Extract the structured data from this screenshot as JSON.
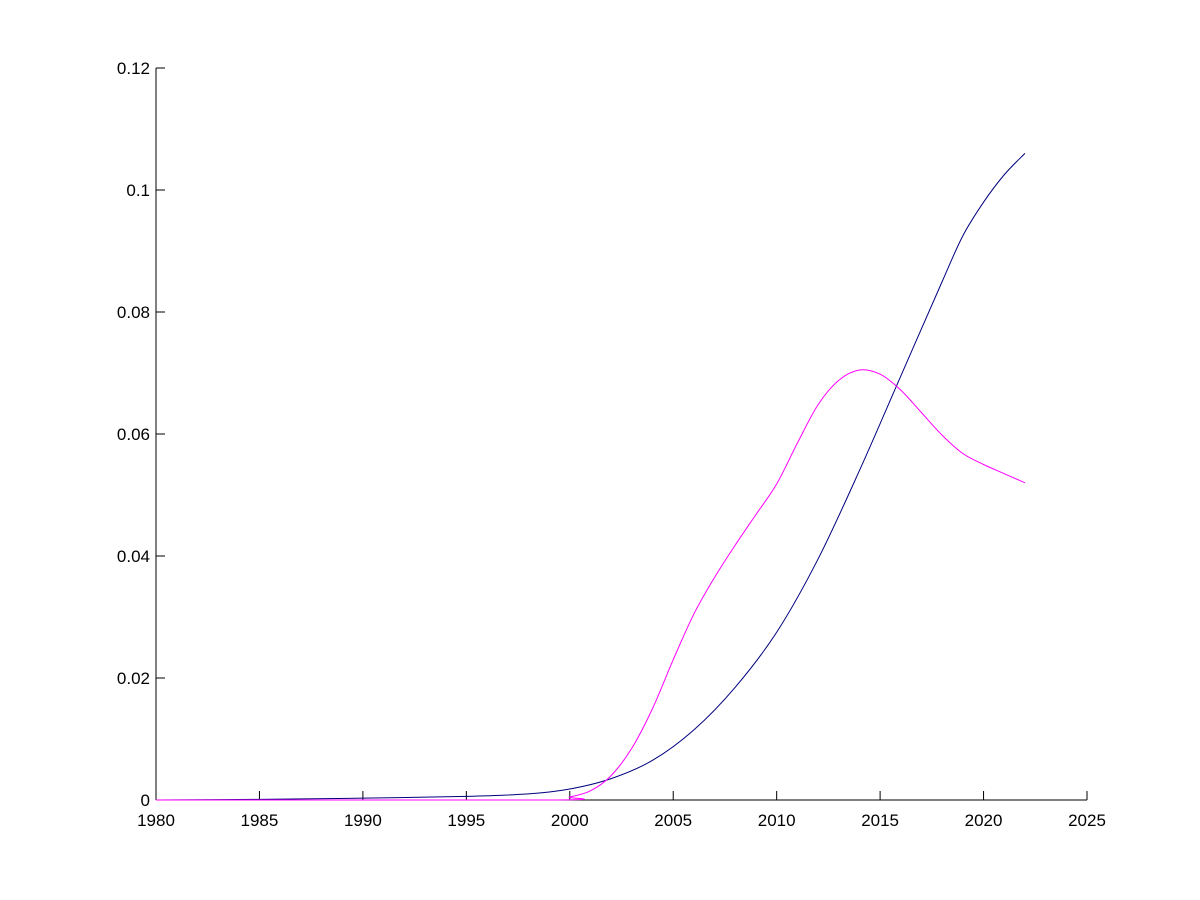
{
  "chart_data": {
    "type": "line",
    "title": "",
    "xlabel": "",
    "ylabel": "",
    "xlim": [
      1980,
      2025
    ],
    "ylim": [
      0,
      0.12
    ],
    "xticks": [
      1980,
      1985,
      1990,
      1995,
      2000,
      2005,
      2010,
      2015,
      2020,
      2025
    ],
    "xtick_labels": [
      "1980",
      "1985",
      "1990",
      "1995",
      "2000",
      "2005",
      "2010",
      "2015",
      "2020",
      "2025"
    ],
    "yticks": [
      0,
      0.02,
      0.04,
      0.06,
      0.08,
      0.1,
      0.12
    ],
    "ytick_labels": [
      "0",
      "0.02",
      "0.04",
      "0.06",
      "0.08",
      "0.1",
      "0.12"
    ],
    "grid": false,
    "legend": "none",
    "series": [
      {
        "color": "#00007f",
        "x": [
          1980,
          1985,
          1990,
          1995,
          1998,
          2000,
          2002,
          2004,
          2006,
          2008,
          2010,
          2012,
          2014,
          2016,
          2018,
          2019,
          2020,
          2021,
          2022
        ],
        "y": [
          0,
          0.0001,
          0.0003,
          0.0006,
          0.001,
          0.0018,
          0.0035,
          0.0065,
          0.0115,
          0.0185,
          0.0275,
          0.0395,
          0.054,
          0.0695,
          0.085,
          0.0925,
          0.098,
          0.1025,
          0.106
        ]
      },
      {
        "color": "#ff00ff",
        "x": [
          1980,
          1999,
          2000,
          2001,
          2002,
          2003,
          2004,
          2005,
          2006,
          2007,
          2008,
          2009,
          2010,
          2011,
          2012,
          2013,
          2014,
          2015,
          2016,
          2017,
          2018,
          2019,
          2020,
          2021,
          2022
        ],
        "y": [
          0,
          0,
          0.0005,
          0.0015,
          0.004,
          0.0085,
          0.015,
          0.023,
          0.0305,
          0.0365,
          0.0418,
          0.0468,
          0.0518,
          0.0585,
          0.0648,
          0.0688,
          0.0705,
          0.0698,
          0.0672,
          0.0635,
          0.0598,
          0.0568,
          0.055,
          0.0535,
          0.052
        ]
      }
    ]
  }
}
